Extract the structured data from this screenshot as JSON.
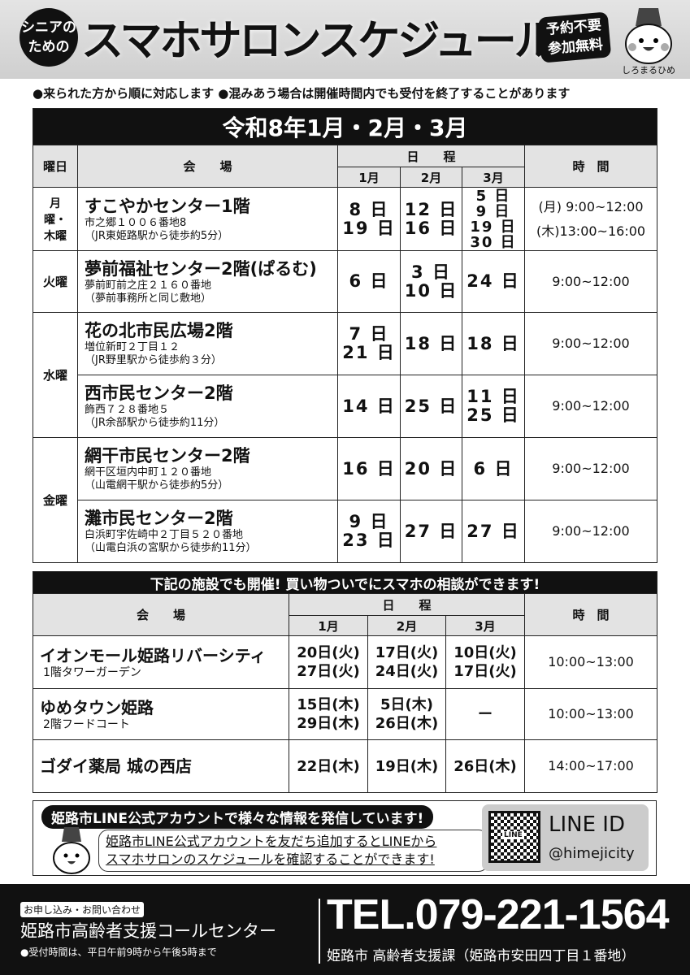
{
  "header": {
    "circle_line1": "シニアの",
    "circle_line2": "ための",
    "title": "スマホサロンスケジュール表",
    "badge_line1": "予約不要",
    "badge_line2": "参加無料",
    "mascot_label": "しろまるひめ"
  },
  "notice": "●来られた方から順に対応します ●混みあう場合は開催時間内でも受付を終了することがあります",
  "schedule": {
    "title": "令和8年1月・2月・3月",
    "headers": {
      "day": "曜日",
      "venue": "会　　場",
      "dates": "日　　程",
      "months": [
        "1月",
        "2月",
        "3月"
      ],
      "time": "時　間"
    },
    "groups": [
      {
        "day": "月曜・木曜"
      },
      {
        "day": "火曜"
      },
      {
        "day": "水曜"
      },
      {
        "day": "金曜"
      }
    ],
    "rows": [
      {
        "name": "すこやかセンター1階",
        "addr": "市之郷１００６番地8",
        "access": "（JR東姫路駅から徒歩約5分）",
        "jan": [
          "8 日",
          "19 日"
        ],
        "feb": [
          "12 日",
          "16 日"
        ],
        "mar": [
          "5 日",
          "9 日",
          "19 日",
          "30 日"
        ],
        "time": [
          "(月) 9:00~12:00",
          "(木)13:00~16:00"
        ]
      },
      {
        "name": "夢前福祉センター2階(ぱるむ)",
        "addr": "夢前町前之庄２１６０番地",
        "access": "（夢前事務所と同じ敷地）",
        "jan": [
          "6 日"
        ],
        "feb": [
          "3 日",
          "10 日"
        ],
        "mar": [
          "24 日"
        ],
        "time": [
          "9:00~12:00"
        ]
      },
      {
        "name": "花の北市民広場2階",
        "addr": "増位新町２丁目１２",
        "access": "（JR野里駅から徒歩約３分）",
        "jan": [
          "7 日",
          "21 日"
        ],
        "feb": [
          "18 日"
        ],
        "mar": [
          "18 日"
        ],
        "time": [
          "9:00~12:00"
        ]
      },
      {
        "name": "西市民センター2階",
        "addr": "飾西７２８番地５",
        "access": "（JR余部駅から徒歩約11分）",
        "jan": [
          "14 日"
        ],
        "feb": [
          "25 日"
        ],
        "mar": [
          "11 日",
          "25 日"
        ],
        "time": [
          "9:00~12:00"
        ]
      },
      {
        "name": "網干市民センター2階",
        "addr": "網干区垣内中町１２０番地",
        "access": "（山電網干駅から徒歩約5分）",
        "jan": [
          "16 日"
        ],
        "feb": [
          "20 日"
        ],
        "mar": [
          "6 日"
        ],
        "time": [
          "9:00~12:00"
        ]
      },
      {
        "name": "灘市民センター2階",
        "addr": "白浜町宇佐崎中２丁目５２０番地",
        "access": "（山電白浜の宮駅から徒歩約11分）",
        "jan": [
          "9 日",
          "23 日"
        ],
        "feb": [
          "27 日"
        ],
        "mar": [
          "27 日"
        ],
        "time": [
          "9:00~12:00"
        ]
      }
    ]
  },
  "extra": {
    "title": "下記の施設でも開催! 買い物ついでにスマホの相談ができます!",
    "headers": {
      "venue": "会　　場",
      "dates": "日　　程",
      "months": [
        "1月",
        "2月",
        "3月"
      ],
      "time": "時　間"
    },
    "rows": [
      {
        "name": "イオンモール姫路リバーシティ",
        "sub": "1階タワーガーデン",
        "jan": [
          "20日(火)",
          "27日(火)"
        ],
        "feb": [
          "17日(火)",
          "24日(火)"
        ],
        "mar": [
          "10日(火)",
          "17日(火)"
        ],
        "time": "10:00~13:00"
      },
      {
        "name": "ゆめタウン姫路",
        "sub": "2階フードコート",
        "jan": [
          "15日(木)",
          "29日(木)"
        ],
        "feb": [
          "5日(木)",
          "26日(木)"
        ],
        "mar": [
          "ー"
        ],
        "time": "10:00~13:00"
      },
      {
        "name": "ゴダイ薬局 城の西店",
        "sub": "",
        "jan": [
          "22日(木)"
        ],
        "feb": [
          "19日(木)"
        ],
        "mar": [
          "26日(木)"
        ],
        "time": "14:00~17:00"
      }
    ]
  },
  "line": {
    "caption": "姫路市LINE公式アカウントで様々な情報を発信しています!",
    "bubble_line1": "姫路市LINE公式アカウントを友だち追加するとLINEから",
    "bubble_line2": "スマホサロンのスケジュールを確認することができます!",
    "qr_label": "LINE",
    "id_label": "LINE ID",
    "handle": "@himejicity"
  },
  "footer": {
    "tag": "お申し込み・お問い合わせ",
    "center": "姫路市高齢者支援コールセンター",
    "hours": "●受付時間は、平日午前9時から午後5時まで",
    "tel": "TEL.079-221-1564",
    "dept": "姫路市 高齢者支援課（姫路市安田四丁目１番地）"
  }
}
